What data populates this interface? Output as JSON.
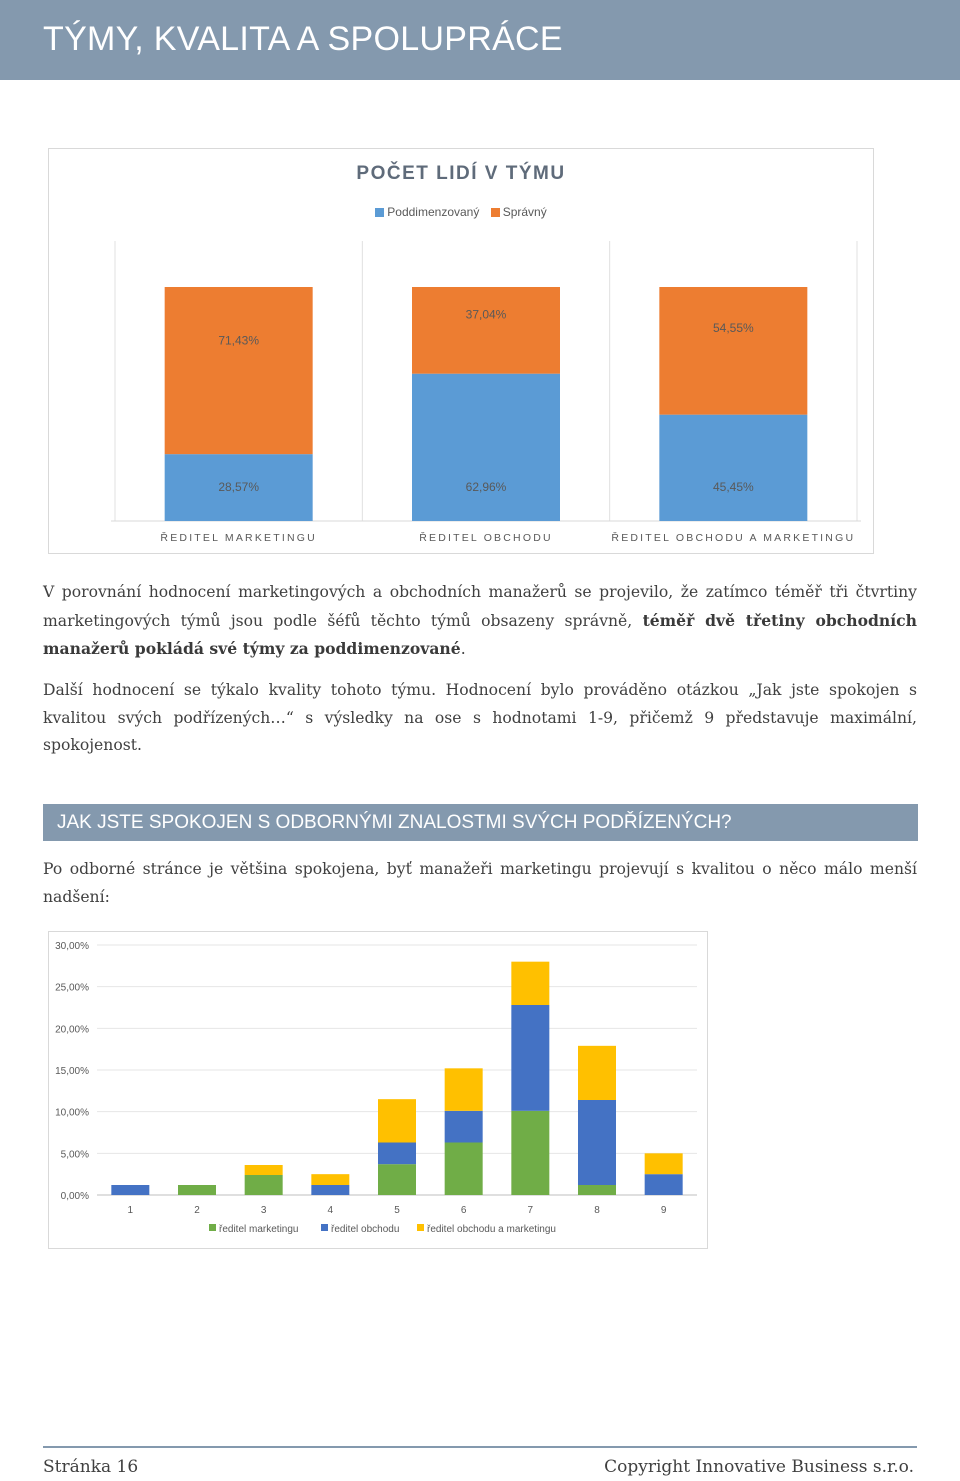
{
  "header": {
    "title": "TÝMY, KVALITA A SPOLUPRÁCE"
  },
  "chart1": {
    "chart_data": {
      "type": "bar",
      "stacked": "100%",
      "title": "POČET LIDÍ V TÝMU",
      "categories": [
        "ŘEDITEL MARKETINGU",
        "ŘEDITEL OBCHODU",
        "ŘEDITEL OBCHODU A MARKETINGU"
      ],
      "series": [
        {
          "name": "Poddimenzovaný",
          "values": [
            28.57,
            62.96,
            45.45
          ],
          "labels": [
            "28,57%",
            "62,96%",
            "45,45%"
          ],
          "color": "#5b9bd5"
        },
        {
          "name": "Správný",
          "values": [
            71.43,
            37.04,
            54.55
          ],
          "labels": [
            "71,43%",
            "37,04%",
            "54,55%"
          ],
          "color": "#ed7d31"
        }
      ],
      "legend": "top",
      "grid": true
    }
  },
  "paragraph1": {
    "text1": "V porovnání hodnocení marketingových a obchodních manažerů se projevilo, že zatímco téměř tři čtvrtiny marketingových týmů jsou podle šéfů těchto týmů obsazeny správně, ",
    "bold": "téměř dvě třetiny obchodních manažerů pokládá své týmy za poddimenzované",
    "text2": "."
  },
  "paragraph2": "Další hodnocení se týkalo kvality tohoto týmu. Hodnocení bylo prováděno otázkou „Jak jste spokojen s kvalitou svých podřízených…“ s výsledky na ose s hodnotami 1-9, přičemž 9 představuje maximální, spokojenost.",
  "question": {
    "title": "JAK JSTE SPOKOJEN S ODBORNÝMI ZNALOSTMI SVÝCH PODŘÍZENÝCH?"
  },
  "paragraph3": "Po odborné stránce je většina spokojena, byť manažeři marketingu projevují s kvalitou o něco málo menší nadšení:",
  "chart2": {
    "chart_data": {
      "type": "bar",
      "stacked": true,
      "categories": [
        "1",
        "2",
        "3",
        "4",
        "5",
        "6",
        "7",
        "8",
        "9"
      ],
      "y_ticks": [
        "0,00%",
        "5,00%",
        "10,00%",
        "15,00%",
        "20,00%",
        "25,00%",
        "30,00%"
      ],
      "ylim": [
        0,
        30
      ],
      "series": [
        {
          "name": "ředitel marketingu",
          "values": [
            0,
            1.2,
            2.4,
            0,
            3.7,
            6.3,
            10.1,
            1.2,
            0
          ],
          "color": "#70ad47"
        },
        {
          "name": "ředitel obchodu",
          "values": [
            1.2,
            0,
            0,
            1.2,
            2.6,
            3.8,
            12.7,
            10.2,
            2.5
          ],
          "color": "#4472c4"
        },
        {
          "name": "ředitel obchodu a marketingu",
          "values": [
            0,
            0,
            1.2,
            1.3,
            5.2,
            5.1,
            5.2,
            6.5,
            2.5
          ],
          "color": "#ffc000"
        }
      ],
      "legend": "bottom",
      "grid": true
    }
  },
  "footer": {
    "page": "Stránka 16",
    "copyright": "Copyright Innovative Business s.r.o."
  }
}
